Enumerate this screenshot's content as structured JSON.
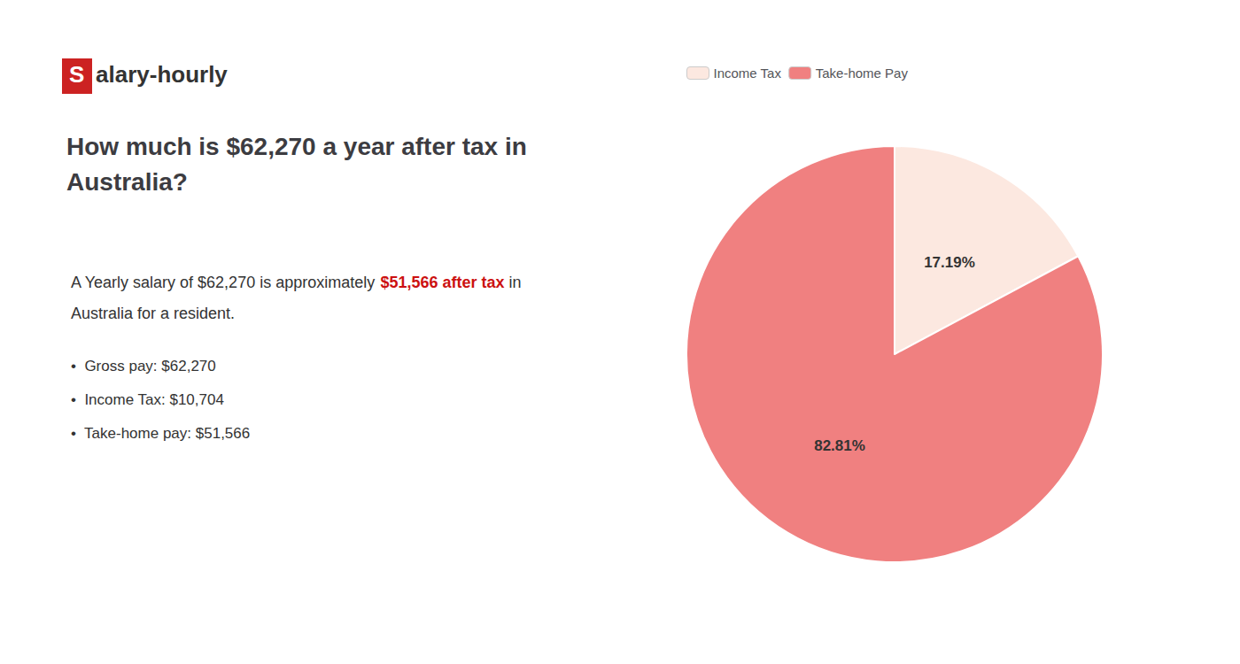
{
  "chart_data": {
    "type": "pie",
    "title": "How much is $62,270 a year after tax in\nAustralia?",
    "annotations": [
      [
        {
          "text": "S",
          "color": "#cc2222"
        },
        {
          "text": "alary-hourly"
        }
      ],
      [
        {
          "text": "A Yearly salary of $62,270 is approximately "
        },
        {
          "text": "$51,566 after tax",
          "color": "#cc1111"
        },
        {
          "text": " in"
        }
      ],
      [
        {
          "text": "Australia for a resident."
        }
      ],
      [
        {
          "text": "•  Gross pay: $62,270"
        }
      ],
      [
        {
          "text": "•  Income Tax: $10,704"
        }
      ],
      [
        {
          "text": "•  Take-home pay: $51,566"
        }
      ]
    ],
    "categories": [
      "Income Tax",
      "Take-home Pay"
    ],
    "values": [
      17.19,
      82.81
    ],
    "value_labels": [
      "17.19%",
      "82.81%"
    ],
    "colors": [
      "#fce8e0",
      "#f08080"
    ],
    "data_labels": true,
    "legend": "top"
  }
}
